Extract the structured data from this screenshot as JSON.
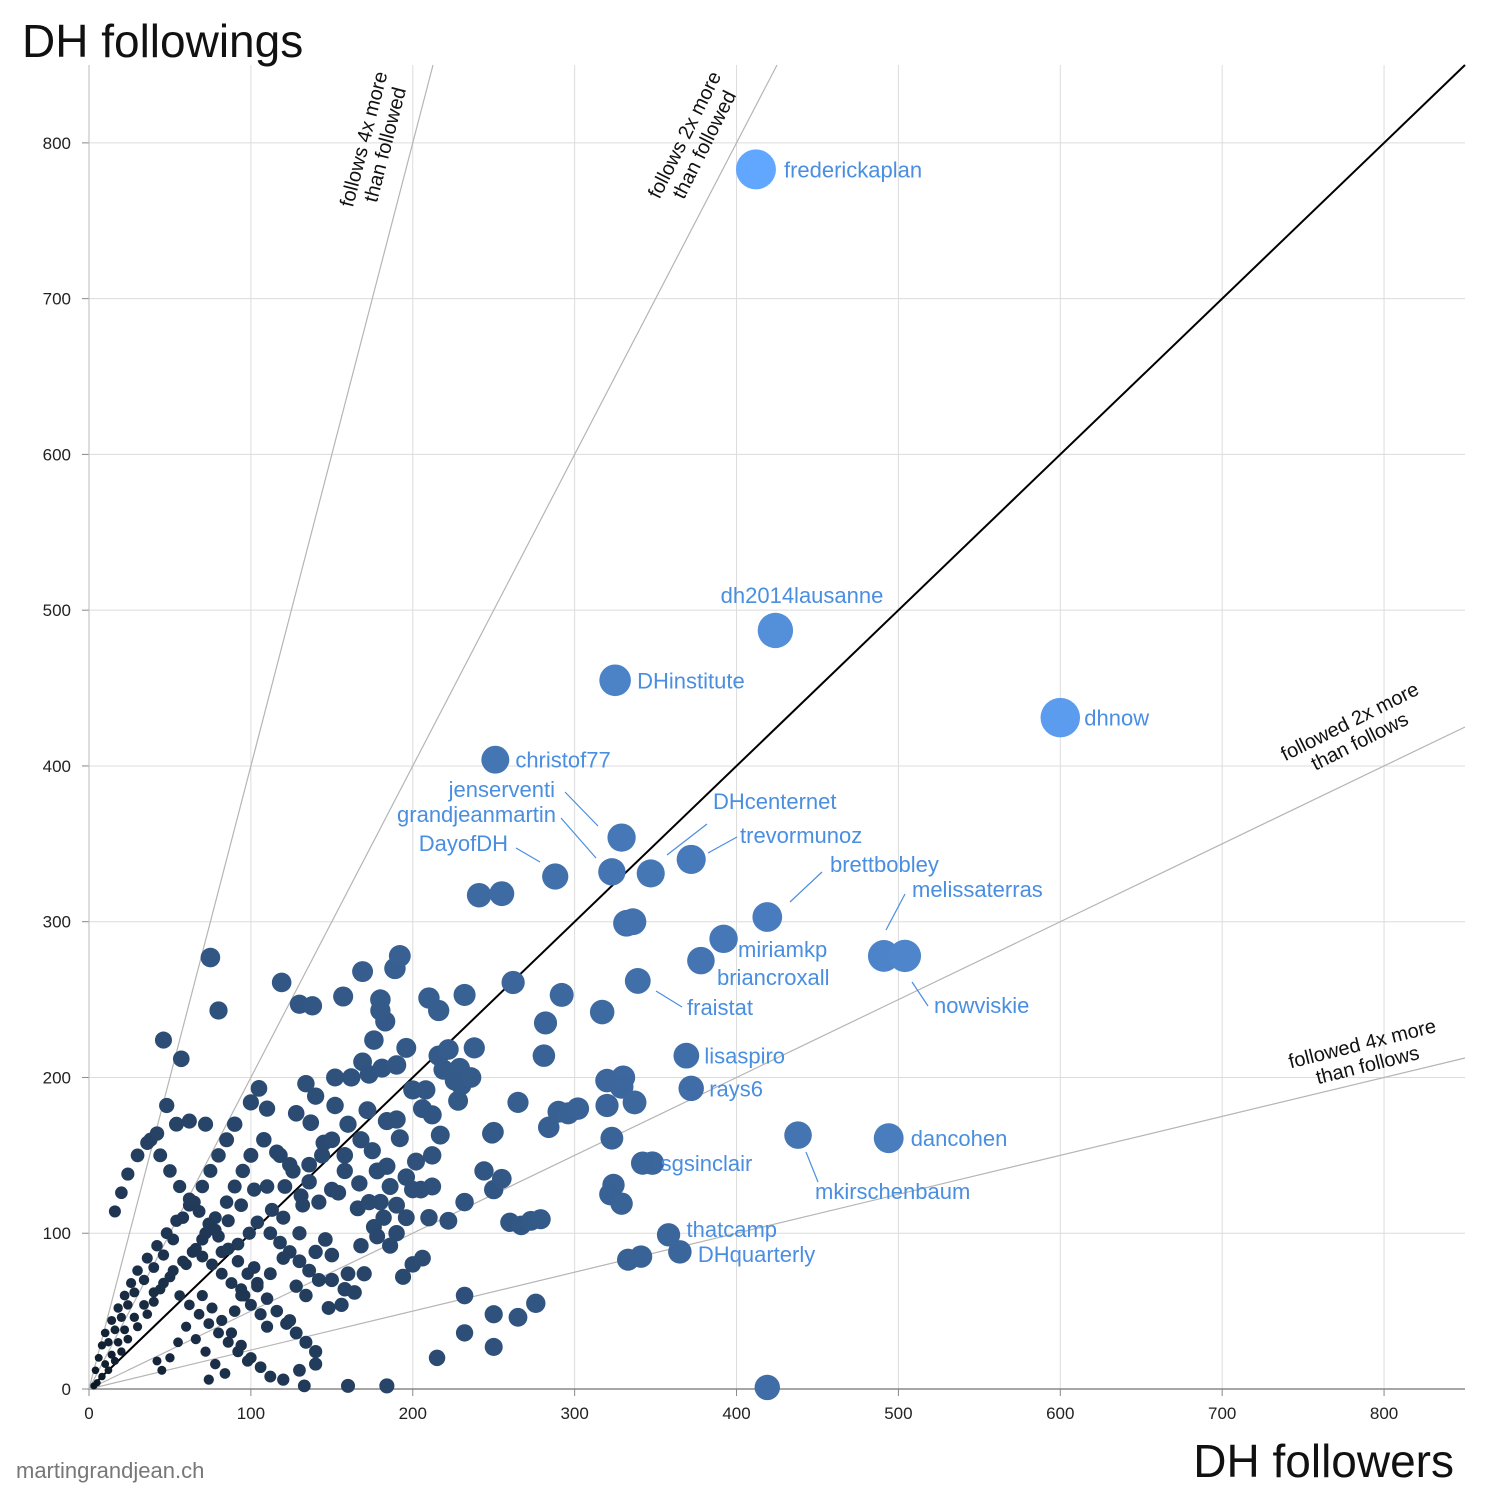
{
  "chart_data": {
    "type": "scatter",
    "title": "DH followings",
    "xlabel": "DH followers",
    "ylabel": "DH followings",
    "credit": "martingrandjean.ch",
    "xlim": [
      0,
      850
    ],
    "ylim": [
      0,
      850
    ],
    "x_ticks": [
      0,
      100,
      200,
      300,
      400,
      500,
      600,
      700,
      800
    ],
    "y_ticks": [
      0,
      100,
      200,
      300,
      400,
      500,
      600,
      700,
      800
    ],
    "grid": true,
    "color_scale": [
      "#0b1520",
      "#62a7ff"
    ],
    "reference_lines": [
      {
        "slope": 1,
        "label": ""
      },
      {
        "slope": 4,
        "label": "follows 4x more than followed"
      },
      {
        "slope": 2,
        "label": "follows 2x more than followed"
      },
      {
        "slope": 0.5,
        "label": "followed 2x more than follows"
      },
      {
        "slope": 0.25,
        "label": "followed 4x more than follows"
      }
    ],
    "reference_label_lines": [
      [
        "follows 4x more",
        "than followed"
      ],
      [
        "follows 2x more",
        "than followed"
      ],
      [
        "followed 2x more",
        "than follows"
      ],
      [
        "followed 4x more",
        "than follows"
      ]
    ],
    "labeled_points": [
      {
        "name": "frederickaplan",
        "x": 412,
        "y": 783
      },
      {
        "name": "dh2014lausanne",
        "x": 424,
        "y": 487
      },
      {
        "name": "DHinstitute",
        "x": 325,
        "y": 455
      },
      {
        "name": "dhnow",
        "x": 600,
        "y": 431
      },
      {
        "name": "christof77",
        "x": 251,
        "y": 404
      },
      {
        "name": "jenserventi",
        "x": 329,
        "y": 354
      },
      {
        "name": "grandjeanmartin",
        "x": 323,
        "y": 332
      },
      {
        "name": "DayofDH",
        "x": 288,
        "y": 329
      },
      {
        "name": "DHcenternet",
        "x": 347,
        "y": 331
      },
      {
        "name": "trevormunoz",
        "x": 372,
        "y": 340
      },
      {
        "name": "brettbobley",
        "x": 419,
        "y": 303
      },
      {
        "name": "melissaterras",
        "x": 491,
        "y": 278
      },
      {
        "name": "nowviskie",
        "x": 504,
        "y": 278
      },
      {
        "name": "miriamkp",
        "x": 392,
        "y": 289
      },
      {
        "name": "briancroxall",
        "x": 378,
        "y": 275
      },
      {
        "name": "fraistat",
        "x": 339,
        "y": 262
      },
      {
        "name": "lisaspiro",
        "x": 369,
        "y": 214
      },
      {
        "name": "rays6",
        "x": 372,
        "y": 193
      },
      {
        "name": "dancohen",
        "x": 494,
        "y": 161
      },
      {
        "name": "mkirschenbaum",
        "x": 438,
        "y": 163
      },
      {
        "name": "sgsinclair",
        "x": 342,
        "y": 145
      },
      {
        "name": "thatcamp",
        "x": 358,
        "y": 99
      },
      {
        "name": "DHquarterly",
        "x": 365,
        "y": 88
      }
    ],
    "points": [
      [
        75,
        277
      ],
      [
        80,
        243
      ],
      [
        46,
        224
      ],
      [
        57,
        212
      ],
      [
        119,
        261
      ],
      [
        130,
        247
      ],
      [
        138,
        246
      ],
      [
        157,
        252
      ],
      [
        169,
        268
      ],
      [
        180,
        250
      ],
      [
        189,
        270
      ],
      [
        192,
        278
      ],
      [
        183,
        236
      ],
      [
        180,
        243
      ],
      [
        176,
        224
      ],
      [
        210,
        251
      ],
      [
        216,
        243
      ],
      [
        232,
        253
      ],
      [
        169,
        210
      ],
      [
        173,
        202
      ],
      [
        162,
        200
      ],
      [
        152,
        200
      ],
      [
        181,
        206
      ],
      [
        190,
        208
      ],
      [
        196,
        219
      ],
      [
        216,
        214
      ],
      [
        222,
        218
      ],
      [
        219,
        205
      ],
      [
        229,
        206
      ],
      [
        230,
        195
      ],
      [
        228,
        185
      ],
      [
        200,
        192
      ],
      [
        208,
        192
      ],
      [
        238,
        219
      ],
      [
        262,
        261
      ],
      [
        292,
        253
      ],
      [
        282,
        235
      ],
      [
        317,
        242
      ],
      [
        281,
        214
      ],
      [
        265,
        184
      ],
      [
        249,
        164
      ],
      [
        212,
        176
      ],
      [
        217,
        163
      ],
      [
        190,
        173
      ],
      [
        184,
        172
      ],
      [
        172,
        179
      ],
      [
        152,
        182
      ],
      [
        140,
        188
      ],
      [
        134,
        196
      ],
      [
        105,
        193
      ],
      [
        110,
        180
      ],
      [
        100,
        184
      ],
      [
        128,
        177
      ],
      [
        137,
        171
      ],
      [
        145,
        158
      ],
      [
        158,
        150
      ],
      [
        175,
        153
      ],
      [
        184,
        143
      ],
      [
        192,
        161
      ],
      [
        202,
        146
      ],
      [
        196,
        136
      ],
      [
        167,
        132
      ],
      [
        158,
        140
      ],
      [
        150,
        128
      ],
      [
        136,
        133
      ],
      [
        131,
        124
      ],
      [
        121,
        130
      ],
      [
        113,
        115
      ],
      [
        104,
        107
      ],
      [
        99,
        100
      ],
      [
        92,
        93
      ],
      [
        82,
        88
      ],
      [
        70,
        85
      ],
      [
        60,
        80
      ],
      [
        50,
        72
      ],
      [
        44,
        64
      ],
      [
        40,
        56
      ],
      [
        36,
        48
      ],
      [
        30,
        40
      ],
      [
        24,
        32
      ],
      [
        20,
        24
      ],
      [
        16,
        18
      ],
      [
        12,
        12
      ],
      [
        8,
        8
      ],
      [
        5,
        4
      ],
      [
        3,
        2
      ],
      [
        66,
        90
      ],
      [
        72,
        100
      ],
      [
        78,
        110
      ],
      [
        85,
        120
      ],
      [
        90,
        130
      ],
      [
        95,
        140
      ],
      [
        100,
        150
      ],
      [
        108,
        160
      ],
      [
        116,
        152
      ],
      [
        124,
        144
      ],
      [
        62,
        118
      ],
      [
        54,
        108
      ],
      [
        48,
        100
      ],
      [
        42,
        92
      ],
      [
        36,
        84
      ],
      [
        30,
        76
      ],
      [
        26,
        68
      ],
      [
        22,
        60
      ],
      [
        18,
        52
      ],
      [
        14,
        44
      ],
      [
        10,
        36
      ],
      [
        8,
        28
      ],
      [
        6,
        20
      ],
      [
        4,
        12
      ],
      [
        90,
        170
      ],
      [
        85,
        160
      ],
      [
        80,
        150
      ],
      [
        75,
        140
      ],
      [
        70,
        130
      ],
      [
        65,
        120
      ],
      [
        58,
        110
      ],
      [
        52,
        96
      ],
      [
        46,
        86
      ],
      [
        40,
        78
      ],
      [
        34,
        70
      ],
      [
        28,
        62
      ],
      [
        24,
        54
      ],
      [
        20,
        46
      ],
      [
        16,
        38
      ],
      [
        12,
        30
      ],
      [
        38,
        160
      ],
      [
        44,
        150
      ],
      [
        50,
        140
      ],
      [
        56,
        130
      ],
      [
        62,
        122
      ],
      [
        68,
        114
      ],
      [
        74,
        106
      ],
      [
        80,
        98
      ],
      [
        86,
        90
      ],
      [
        92,
        82
      ],
      [
        98,
        74
      ],
      [
        104,
        66
      ],
      [
        110,
        58
      ],
      [
        116,
        50
      ],
      [
        122,
        42
      ],
      [
        128,
        36
      ],
      [
        134,
        30
      ],
      [
        140,
        24
      ],
      [
        70,
        60
      ],
      [
        76,
        52
      ],
      [
        82,
        44
      ],
      [
        88,
        36
      ],
      [
        94,
        28
      ],
      [
        100,
        20
      ],
      [
        106,
        14
      ],
      [
        112,
        8
      ],
      [
        60,
        40
      ],
      [
        66,
        32
      ],
      [
        72,
        24
      ],
      [
        78,
        16
      ],
      [
        84,
        10
      ],
      [
        55,
        30
      ],
      [
        50,
        20
      ],
      [
        45,
        12
      ],
      [
        200,
        128
      ],
      [
        212,
        130
      ],
      [
        232,
        120
      ],
      [
        244,
        140
      ],
      [
        250,
        128
      ],
      [
        255,
        135
      ],
      [
        210,
        110
      ],
      [
        222,
        108
      ],
      [
        196,
        110
      ],
      [
        190,
        100
      ],
      [
        186,
        92
      ],
      [
        200,
        80
      ],
      [
        206,
        84
      ],
      [
        194,
        72
      ],
      [
        170,
        74
      ],
      [
        160,
        74
      ],
      [
        150,
        70
      ],
      [
        158,
        64
      ],
      [
        164,
        62
      ],
      [
        156,
        54
      ],
      [
        148,
        52
      ],
      [
        140,
        88
      ],
      [
        150,
        86
      ],
      [
        146,
        96
      ],
      [
        130,
        100
      ],
      [
        120,
        110
      ],
      [
        132,
        118
      ],
      [
        142,
        120
      ],
      [
        154,
        126
      ],
      [
        166,
        116
      ],
      [
        176,
        104
      ],
      [
        182,
        110
      ],
      [
        178,
        98
      ],
      [
        168,
        92
      ],
      [
        120,
        84
      ],
      [
        112,
        74
      ],
      [
        104,
        68
      ],
      [
        96,
        60
      ],
      [
        128,
        66
      ],
      [
        134,
        60
      ],
      [
        232,
        60
      ],
      [
        232,
        36
      ],
      [
        250,
        48
      ],
      [
        265,
        46
      ],
      [
        276,
        55
      ],
      [
        250,
        27
      ],
      [
        215,
        20
      ],
      [
        140,
        16
      ],
      [
        130,
        12
      ],
      [
        133,
        2
      ],
      [
        184,
        2
      ],
      [
        160,
        2
      ],
      [
        120,
        6
      ],
      [
        74,
        6
      ],
      [
        42,
        18
      ],
      [
        90,
        50
      ],
      [
        110,
        40
      ],
      [
        124,
        44
      ],
      [
        94,
        64
      ],
      [
        102,
        78
      ],
      [
        250,
        165
      ],
      [
        260,
        107
      ],
      [
        267,
        105
      ],
      [
        273,
        108
      ],
      [
        279,
        109
      ],
      [
        284,
        168
      ],
      [
        290,
        178
      ],
      [
        296,
        177
      ],
      [
        302,
        180
      ],
      [
        323,
        161
      ],
      [
        330,
        200
      ],
      [
        329,
        194
      ],
      [
        337,
        184
      ],
      [
        324,
        131
      ],
      [
        322,
        125
      ],
      [
        329,
        119
      ],
      [
        333,
        83
      ],
      [
        341,
        85
      ],
      [
        348,
        145
      ],
      [
        320,
        182
      ],
      [
        320,
        198
      ],
      [
        332,
        299
      ],
      [
        336,
        300
      ],
      [
        241,
        317
      ],
      [
        255,
        318
      ],
      [
        419,
        1
      ],
      [
        180,
        120
      ],
      [
        173,
        120
      ],
      [
        190,
        118
      ],
      [
        205,
        128
      ],
      [
        62,
        172
      ],
      [
        54,
        170
      ],
      [
        48,
        182
      ],
      [
        72,
        170
      ],
      [
        42,
        164
      ],
      [
        36,
        158
      ],
      [
        30,
        150
      ],
      [
        24,
        138
      ],
      [
        20,
        126
      ],
      [
        16,
        114
      ],
      [
        226,
        198
      ],
      [
        236,
        200
      ],
      [
        206,
        180
      ],
      [
        212,
        150
      ],
      [
        186,
        130
      ],
      [
        178,
        140
      ],
      [
        168,
        160
      ],
      [
        160,
        170
      ],
      [
        150,
        160
      ],
      [
        144,
        150
      ],
      [
        136,
        144
      ],
      [
        126,
        140
      ],
      [
        118,
        150
      ],
      [
        110,
        130
      ],
      [
        102,
        128
      ],
      [
        94,
        118
      ],
      [
        86,
        108
      ],
      [
        78,
        102
      ],
      [
        70,
        96
      ],
      [
        64,
        88
      ],
      [
        58,
        82
      ],
      [
        52,
        76
      ],
      [
        46,
        68
      ],
      [
        40,
        62
      ],
      [
        34,
        54
      ],
      [
        28,
        46
      ],
      [
        22,
        38
      ],
      [
        18,
        30
      ],
      [
        14,
        22
      ],
      [
        10,
        16
      ],
      [
        112,
        100
      ],
      [
        118,
        94
      ],
      [
        124,
        88
      ],
      [
        130,
        82
      ],
      [
        136,
        76
      ],
      [
        142,
        70
      ],
      [
        76,
        80
      ],
      [
        82,
        74
      ],
      [
        88,
        68
      ],
      [
        94,
        60
      ],
      [
        100,
        54
      ],
      [
        106,
        48
      ],
      [
        56,
        60
      ],
      [
        62,
        54
      ],
      [
        68,
        48
      ],
      [
        74,
        42
      ],
      [
        80,
        36
      ],
      [
        86,
        30
      ],
      [
        92,
        24
      ],
      [
        98,
        18
      ]
    ]
  }
}
